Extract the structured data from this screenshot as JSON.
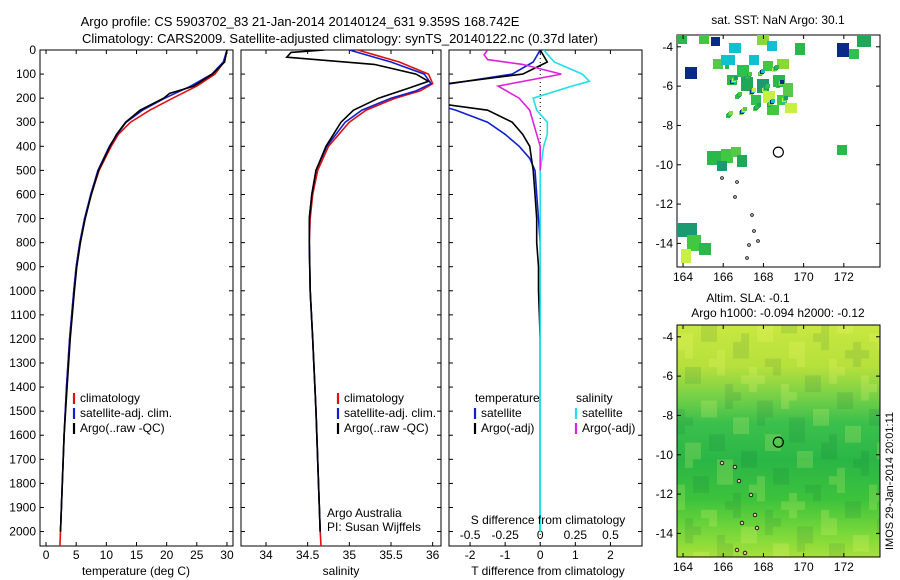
{
  "title_line1": "Argo profile: CS 5903702_83 21-Jan-2014 20140124_631 9.359S 168.742E",
  "title_line2": "Climatology: CARS2009. Satellite-adjusted climatology: synTS_20140122.nc (0.37d later)",
  "colors": {
    "climatology": "#e01010",
    "satellite": "#1020d0",
    "argo": "#000000",
    "sat_salinity": "#20e0e8",
    "argo_salinity": "#e020e0"
  },
  "chart_data": [
    {
      "type": "line",
      "xlabel": "temperature (deg C)",
      "ylabel": "",
      "xlim": [
        -1,
        31
      ],
      "ylim": [
        2060,
        0
      ],
      "xticks": [
        0,
        5,
        10,
        15,
        20,
        25,
        30
      ],
      "yticks": [
        0,
        100,
        200,
        300,
        400,
        500,
        600,
        700,
        800,
        900,
        1000,
        1100,
        1200,
        1300,
        1400,
        1500,
        1600,
        1700,
        1800,
        1900,
        2000
      ],
      "legend": [
        "climatology",
        "satellite-adj. clim.",
        "Argo(..raw -QC)"
      ],
      "series": [
        {
          "key": "climatology",
          "depth": [
            0,
            50,
            100,
            150,
            200,
            250,
            300,
            350,
            400,
            500,
            600,
            700,
            800,
            900,
            1000,
            1200,
            1400,
            1600,
            1800,
            2000,
            2060
          ],
          "values": [
            30,
            29.5,
            28,
            25,
            21,
            17.2,
            14,
            12,
            10.8,
            8.8,
            7.5,
            6.4,
            5.6,
            5.0,
            4.6,
            3.9,
            3.4,
            3.0,
            2.7,
            2.4,
            2.3
          ]
        },
        {
          "key": "satellite",
          "depth": [
            0,
            50,
            100,
            150,
            200,
            250,
            300,
            350,
            400,
            500,
            600,
            700,
            800,
            900,
            1000,
            1200,
            1400,
            1600,
            1800,
            2000
          ],
          "values": [
            30,
            29.4,
            27.5,
            24,
            19.7,
            16,
            13.3,
            11.8,
            10.5,
            8.6,
            7.4,
            6.4,
            5.6,
            5.0,
            4.6,
            3.9,
            3.4,
            3.0,
            2.7,
            2.4
          ]
        },
        {
          "key": "argo",
          "depth": [
            0,
            50,
            100,
            150,
            180,
            200,
            250,
            300,
            350,
            400,
            500,
            600,
            700,
            800,
            900,
            1000,
            1200,
            1400,
            1600,
            1800,
            2000
          ],
          "values": [
            30,
            29.6,
            27.6,
            24.5,
            20.5,
            19.5,
            15.6,
            13.2,
            11.7,
            10.6,
            8.7,
            7.5,
            6.5,
            5.7,
            5.1,
            4.7,
            4.0,
            3.5,
            3.0,
            2.7,
            2.4
          ]
        }
      ]
    },
    {
      "type": "line",
      "xlabel": "salinity",
      "ylabel": "",
      "xlim": [
        33.7,
        36.1
      ],
      "ylim": [
        2060,
        0
      ],
      "xticks": [
        34,
        34.5,
        35,
        35.5,
        36
      ],
      "legend": [
        "climatology",
        "satellite-adj. clim.",
        "Argo(..raw -QC)"
      ],
      "annotation": [
        "Argo Australia",
        "PI: Susan Wijffels"
      ],
      "series": [
        {
          "key": "climatology",
          "depth": [
            0,
            50,
            100,
            140,
            170,
            200,
            250,
            300,
            400,
            500,
            600,
            700,
            800,
            1000,
            1200,
            1500,
            1800,
            2000,
            2060
          ],
          "values": [
            35.1,
            35.6,
            35.95,
            36.0,
            35.85,
            35.55,
            35.2,
            35.0,
            34.75,
            34.62,
            34.56,
            34.53,
            34.52,
            34.53,
            34.56,
            34.6,
            34.63,
            34.65,
            34.66
          ]
        },
        {
          "key": "satellite",
          "depth": [
            0,
            50,
            100,
            140,
            170,
            200,
            250,
            300,
            400,
            500,
            600,
            700,
            800,
            1000,
            1200,
            1500,
            1800,
            2000
          ],
          "values": [
            35.0,
            35.5,
            35.9,
            35.98,
            35.8,
            35.5,
            35.15,
            34.95,
            34.73,
            34.6,
            34.55,
            34.52,
            34.52,
            34.53,
            34.56,
            34.6,
            34.63,
            34.65
          ]
        },
        {
          "key": "argo",
          "depth": [
            0,
            10,
            30,
            60,
            100,
            130,
            160,
            200,
            250,
            300,
            400,
            500,
            600,
            700,
            800,
            1000,
            1200,
            1500,
            1800,
            2000
          ],
          "values": [
            34.7,
            34.3,
            34.25,
            35.3,
            35.8,
            35.95,
            35.7,
            35.35,
            35.05,
            34.9,
            34.72,
            34.6,
            34.55,
            34.52,
            34.52,
            34.53,
            34.56,
            34.6,
            34.63,
            34.65
          ]
        }
      ]
    },
    {
      "type": "line",
      "xlabel": "T difference from climatology",
      "xlabel_top": "S difference from climatology",
      "ylabel": "",
      "xlim": [
        -2.6,
        2.9
      ],
      "ylim": [
        2060,
        0
      ],
      "xticks": [
        -2,
        -1,
        0,
        1,
        2
      ],
      "xticks_top": [
        "-0.5",
        "-0.25",
        "0",
        "0.25",
        "0.5"
      ],
      "xticks_top_values": [
        -2,
        -1,
        0,
        1,
        2
      ],
      "legend_temperature": [
        "temperature",
        "satellite",
        "Argo(-adj)"
      ],
      "legend_salinity": [
        "salinity",
        "satellite",
        "Argo(-adj)"
      ],
      "series": [
        {
          "key": "satellite",
          "depth": [
            0,
            50,
            100,
            150,
            200,
            250,
            300,
            350,
            400,
            450,
            500,
            600,
            700,
            800,
            1000,
            1500,
            2000
          ],
          "values": [
            0,
            -0.2,
            -0.8,
            -3.0,
            -3.6,
            -2.4,
            -1.5,
            -1.0,
            -0.6,
            -0.3,
            -0.15,
            -0.1,
            -0.05,
            0,
            0,
            0,
            0
          ]
        },
        {
          "key": "argo",
          "depth": [
            0,
            50,
            100,
            150,
            180,
            200,
            250,
            300,
            350,
            400,
            500,
            600,
            700,
            800,
            900,
            1000,
            1200,
            1400,
            1600,
            1800,
            2000
          ],
          "values": [
            0,
            0.2,
            -0.5,
            -3.2,
            -5.0,
            -4.0,
            -1.5,
            -0.8,
            -0.5,
            -0.3,
            -0.2,
            -0.15,
            -0.1,
            -0.1,
            -0.05,
            -0.05,
            0,
            0,
            0,
            0,
            0
          ]
        },
        {
          "key": "sat_salinity",
          "depth": [
            0,
            50,
            100,
            130,
            150,
            200,
            250,
            300,
            350,
            400,
            500,
            600,
            800,
            1000,
            1500,
            2000
          ],
          "values": [
            0.1,
            0.4,
            1.2,
            1.4,
            0.9,
            -0.2,
            -0.1,
            0.2,
            0.2,
            0.1,
            0,
            0,
            0,
            0,
            0,
            0
          ]
        },
        {
          "key": "argo_salinity",
          "depth": [
            0,
            20,
            40,
            60,
            100,
            150,
            200,
            250,
            300,
            350,
            400,
            450,
            500
          ],
          "values": [
            -1.5,
            -1.6,
            -1.5,
            -0.5,
            0.6,
            -1.2,
            -0.6,
            -0.3,
            -0.2,
            -0.1,
            0,
            0,
            0
          ]
        }
      ]
    },
    {
      "type": "heatmap",
      "title": "sat. SST: NaN Argo: 30.1",
      "xlim": [
        163.7,
        173.8
      ],
      "ylim": [
        -15.2,
        -3.4
      ],
      "xticks": [
        164,
        166,
        168,
        170,
        172
      ],
      "yticks": [
        -4,
        -6,
        -8,
        -10,
        -12,
        -14
      ],
      "argo_position": {
        "lon": 168.742,
        "lat": -9.359
      }
    },
    {
      "type": "heatmap",
      "title": "Altim. SLA: -0.1",
      "subtitle": "Argo h1000: -0.094 h2000: -0.12",
      "xlim": [
        163.7,
        173.8
      ],
      "ylim": [
        -15.2,
        -3.4
      ],
      "xticks": [
        164,
        166,
        168,
        170,
        172
      ],
      "yticks": [
        -4,
        -6,
        -8,
        -10,
        -12,
        -14
      ],
      "argo_position": {
        "lon": 168.742,
        "lat": -9.359
      }
    }
  ],
  "imos_stamp": "IMOS 29-Jan-2014 20:01:11"
}
